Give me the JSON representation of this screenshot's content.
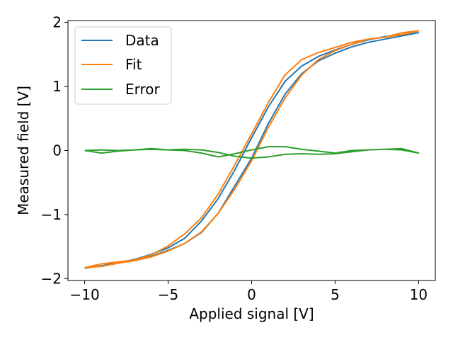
{
  "chart_data": {
    "type": "line",
    "xlabel": "Applied signal [V]",
    "ylabel": "Measured field [V]",
    "xlim": [
      -11.0,
      11.0
    ],
    "ylim": [
      -2.03,
      2.03
    ],
    "xticks": [
      -10,
      -5,
      0,
      5,
      10
    ],
    "xtick_labels": [
      "−10",
      "−5",
      "0",
      "5",
      "10"
    ],
    "yticks": [
      -2,
      -1,
      0,
      1,
      2
    ],
    "ytick_labels": [
      "−2",
      "−1",
      "0",
      "1",
      "2"
    ],
    "grid": false,
    "legend_position": "top-left",
    "series": [
      {
        "name": "Data",
        "color": "#1f77b4",
        "x": [
          -10,
          -9,
          -8,
          -7,
          -6,
          -5,
          -4,
          -3,
          -2,
          -1,
          0,
          1,
          2,
          3,
          4,
          5,
          6,
          7,
          8,
          9,
          10,
          9,
          8,
          7,
          6,
          5,
          4,
          3,
          2,
          1,
          0,
          -1,
          -2,
          -3,
          -4,
          -5,
          -6,
          -7,
          -8,
          -9,
          -10
        ],
        "y": [
          -1.84,
          -1.8,
          -1.76,
          -1.7,
          -1.65,
          -1.56,
          -1.45,
          -1.28,
          -0.98,
          -0.55,
          -0.12,
          0.42,
          0.88,
          1.2,
          1.4,
          1.52,
          1.62,
          1.69,
          1.74,
          1.79,
          1.84,
          1.81,
          1.78,
          1.73,
          1.66,
          1.57,
          1.47,
          1.32,
          1.08,
          0.68,
          0.2,
          -0.3,
          -0.75,
          -1.1,
          -1.37,
          -1.52,
          -1.62,
          -1.7,
          -1.75,
          -1.8,
          -1.84
        ]
      },
      {
        "name": "Fit",
        "color": "#ff7f0e",
        "x": [
          -10,
          -9,
          -8,
          -7,
          -6,
          -5,
          -4,
          -3,
          -2,
          -1,
          0,
          1,
          2,
          3,
          4,
          5,
          6,
          7,
          8,
          9,
          10,
          9,
          8,
          7,
          6,
          5,
          4,
          3,
          2,
          1,
          0,
          -1,
          -2,
          -3,
          -4,
          -5,
          -6,
          -7,
          -8,
          -9,
          -10
        ],
        "y": [
          -1.83,
          -1.81,
          -1.76,
          -1.72,
          -1.66,
          -1.57,
          -1.45,
          -1.27,
          -0.98,
          -0.6,
          -0.16,
          0.36,
          0.82,
          1.18,
          1.42,
          1.56,
          1.66,
          1.74,
          1.77,
          1.81,
          1.87,
          1.84,
          1.77,
          1.74,
          1.69,
          1.61,
          1.53,
          1.42,
          1.18,
          0.75,
          0.26,
          -0.22,
          -0.68,
          -1.05,
          -1.3,
          -1.49,
          -1.63,
          -1.71,
          -1.74,
          -1.77,
          -1.83
        ]
      },
      {
        "name": "Error",
        "color": "#2ca02c",
        "x": [
          -10,
          -9,
          -8,
          -7,
          -6,
          -5,
          -4,
          -3,
          -2,
          -1,
          0,
          1,
          2,
          3,
          4,
          5,
          6,
          7,
          8,
          9,
          10,
          9,
          8,
          7,
          6,
          5,
          4,
          3,
          2,
          1,
          0,
          -1,
          -2,
          -3,
          -4,
          -5,
          -6,
          -7,
          -8,
          -9,
          -10
        ],
        "y": [
          0.0,
          -0.04,
          -0.01,
          0.01,
          0.02,
          0.01,
          0.0,
          -0.04,
          -0.1,
          -0.05,
          0.01,
          0.06,
          0.06,
          0.02,
          -0.01,
          -0.04,
          0.0,
          0.01,
          0.02,
          0.03,
          -0.04,
          0.01,
          0.02,
          0.01,
          -0.02,
          -0.05,
          -0.06,
          -0.05,
          -0.06,
          -0.1,
          -0.12,
          -0.09,
          -0.03,
          0.01,
          0.02,
          0.01,
          0.03,
          0.01,
          0.0,
          0.01,
          0.0
        ]
      }
    ]
  }
}
